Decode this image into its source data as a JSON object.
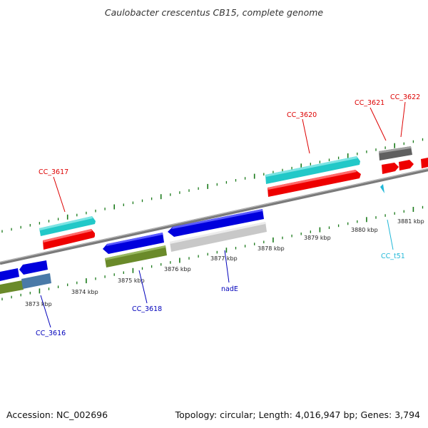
{
  "title": "Caulobacter crescentus CB15, complete genome",
  "footer": {
    "accession": "Accession: NC_002696",
    "summary": "Topology: circular; Length: 4,016,947 bp; Genes: 3,794"
  },
  "colors": {
    "background": "#ffffff",
    "backbone": "#888888",
    "tick": "#1a7a1a",
    "forward_label": "#dd0000",
    "reverse_label": "#0000bb",
    "trna_label": "#22b8d8",
    "cds_red": "#ee0000",
    "cds_blue": "#0000dd",
    "cds_cyan": "#22c8c8",
    "cds_olive": "#6a8a2a",
    "cds_grey": "#606060",
    "cds_light_grey": "#c8c8c8",
    "cds_steel": "#4a7aa8"
  },
  "ticks": [
    {
      "label": "3873 kbp"
    },
    {
      "label": "3874 kbp"
    },
    {
      "label": "3875 kbp"
    },
    {
      "label": "3876 kbp"
    },
    {
      "label": "3877 kbp"
    },
    {
      "label": "3878 kbp"
    },
    {
      "label": "3879 kbp"
    },
    {
      "label": "3880 kbp"
    },
    {
      "label": "3881 kbp"
    }
  ],
  "gene_labels": [
    {
      "name": "CC_3617",
      "strand": "forward"
    },
    {
      "name": "CC_3620",
      "strand": "forward"
    },
    {
      "name": "CC_3621",
      "strand": "forward"
    },
    {
      "name": "CC_3622",
      "strand": "forward"
    },
    {
      "name": "CC_3616",
      "strand": "reverse"
    },
    {
      "name": "CC_3618",
      "strand": "reverse"
    },
    {
      "name": "nadE",
      "strand": "reverse"
    },
    {
      "name": "CC_t51",
      "strand": "trna"
    }
  ]
}
